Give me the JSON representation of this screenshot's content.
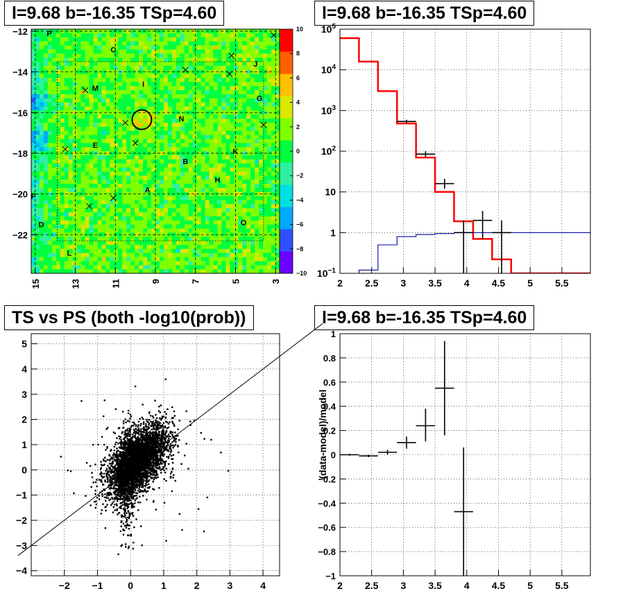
{
  "panels": {
    "skymap": {
      "title": "l=9.68 b=-16.35 TSp=4.60",
      "chart_data": {
        "type": "heatmap",
        "xlim": [
          15.2,
          2.8
        ],
        "ylim": [
          -23.9,
          -11.9
        ],
        "x_ticks": [
          15,
          13,
          11,
          9,
          7,
          5,
          3
        ],
        "y_ticks": [
          -12,
          -14,
          -16,
          -18,
          -20,
          -22
        ],
        "color_scale": {
          "min": -10,
          "max": 10,
          "ticks": [
            10,
            8,
            6,
            4,
            2,
            0,
            -2,
            -4,
            -6,
            -8,
            -10
          ]
        },
        "colors": [
          "#6a00ff",
          "#3050ff",
          "#00aaff",
          "#00e0e0",
          "#30f0a0",
          "#00ff40",
          "#80ff00",
          "#d8e800",
          "#ffc000",
          "#ff6000",
          "#ff0000"
        ],
        "labels": [
          {
            "text": "P",
            "x": 14.3,
            "y": -12.1
          },
          {
            "text": "C",
            "x": 11.1,
            "y": -12.9
          },
          {
            "text": "J",
            "x": 4.0,
            "y": -13.6
          },
          {
            "text": "I",
            "x": 9.6,
            "y": -14.6
          },
          {
            "text": "M",
            "x": 12.0,
            "y": -14.8
          },
          {
            "text": "G",
            "x": 3.8,
            "y": -15.3
          },
          {
            "text": "N",
            "x": 7.7,
            "y": -16.3
          },
          {
            "text": "E",
            "x": 12.0,
            "y": -17.6
          },
          {
            "text": "K",
            "x": 5.0,
            "y": -17.9
          },
          {
            "text": "B",
            "x": 7.5,
            "y": -18.4
          },
          {
            "text": "H",
            "x": 5.9,
            "y": -19.3
          },
          {
            "text": "A",
            "x": 9.4,
            "y": -19.8
          },
          {
            "text": "F",
            "x": 15.1,
            "y": -20.1
          },
          {
            "text": "D",
            "x": 14.7,
            "y": -21.5
          },
          {
            "text": "O",
            "x": 4.6,
            "y": -21.4
          },
          {
            "text": "L",
            "x": 13.3,
            "y": -22.9
          }
        ],
        "crosses": [
          {
            "x": 3.1,
            "y": -12.2
          },
          {
            "x": 5.2,
            "y": -13.2
          },
          {
            "x": 7.5,
            "y": -13.9
          },
          {
            "x": 5.3,
            "y": -14.1
          },
          {
            "x": 12.5,
            "y": -14.9
          },
          {
            "x": 10.5,
            "y": -16.5
          },
          {
            "x": 3.6,
            "y": -16.6
          },
          {
            "x": 10.0,
            "y": -17.5
          },
          {
            "x": 13.5,
            "y": -17.8
          },
          {
            "x": 11.1,
            "y": -20.2
          },
          {
            "x": 12.3,
            "y": -20.6
          }
        ],
        "circle": {
          "x": 9.68,
          "y": -16.35
        }
      }
    },
    "spectrum": {
      "title": "l=9.68 b=-16.35 TSp=4.60",
      "chart_data": {
        "type": "line",
        "log_y": true,
        "xlim": [
          2,
          5.95
        ],
        "ylim": [
          0.1,
          100000
        ],
        "x_ticks": [
          2,
          2.5,
          3,
          3.5,
          4,
          4.5,
          5,
          5.5
        ],
        "y_ticks": [
          {
            "value": 0.1,
            "base": "10",
            "exp": "−1"
          },
          {
            "value": 1,
            "label": "1"
          },
          {
            "value": 10,
            "label": "10"
          },
          {
            "value": 100,
            "base": "10",
            "exp": "2"
          },
          {
            "value": 1000,
            "base": "10",
            "exp": "3"
          },
          {
            "value": 10000,
            "base": "10",
            "exp": "4"
          },
          {
            "value": 100000,
            "base": "10",
            "exp": "5"
          }
        ],
        "grid": true,
        "series": [
          {
            "color": "#ff0000",
            "type": "step",
            "edges": [
              2.0,
              2.3,
              2.6,
              2.9,
              3.2,
              3.5,
              3.8,
              4.1,
              4.4,
              4.7,
              5.95
            ],
            "values": [
              60000,
              16000,
              3000,
              480,
              70,
              10,
              1.9,
              0.7,
              0.22,
              0.1
            ]
          },
          {
            "color": "#0000aa",
            "type": "step",
            "edges": [
              2.0,
              2.3,
              2.6,
              2.9,
              3.2,
              3.5,
              3.8,
              4.1,
              4.4,
              5.95
            ],
            "values": [
              0.1,
              0.12,
              0.5,
              0.8,
              0.9,
              0.95,
              1.0,
              1.0,
              1.0
            ]
          },
          {
            "color": "#000000",
            "type": "errorbar",
            "points": [
              {
                "x": 3.05,
                "xerr": 0.15,
                "y": 540,
                "lo": 490,
                "hi": 590
              },
              {
                "x": 3.35,
                "xerr": 0.15,
                "y": 85,
                "lo": 72,
                "hi": 100
              },
              {
                "x": 3.65,
                "xerr": 0.15,
                "y": 16,
                "lo": 12,
                "hi": 21
              },
              {
                "x": 3.95,
                "xerr": 0.15,
                "y": 1,
                "lo": 0.1,
                "hi": 2.0
              },
              {
                "x": 4.25,
                "xerr": 0.15,
                "y": 2,
                "lo": 0.7,
                "hi": 3.4
              },
              {
                "x": 4.55,
                "xerr": 0.15,
                "y": 1,
                "lo": 0.1,
                "hi": 2.0
              }
            ]
          }
        ]
      }
    },
    "scatter": {
      "title": "TS vs PS (both -log10(prob))",
      "chart_data": {
        "type": "scatter",
        "xlim": [
          -3,
          4.5
        ],
        "ylim": [
          -4.2,
          5.4
        ],
        "x_ticks": [
          -2,
          -1,
          0,
          1,
          2,
          3,
          4
        ],
        "y_ticks": [
          -4,
          -3,
          -2,
          -1,
          0,
          1,
          2,
          3,
          4,
          5
        ],
        "grid": true,
        "point_count": 4000,
        "correlation": 0.55,
        "reference_line": {
          "slope": 1,
          "intercept": 0
        }
      }
    },
    "residual": {
      "title": "l=9.68 b=-16.35 TSp=4.60",
      "chart_data": {
        "type": "scatter",
        "ylabel": "(data-model)/model",
        "xlim": [
          2,
          5.95
        ],
        "ylim": [
          -1,
          1
        ],
        "x_ticks": [
          2,
          2.5,
          3,
          3.5,
          4,
          4.5,
          5,
          5.5
        ],
        "y_ticks": [
          1,
          0.8,
          0.6,
          0.4,
          0.2,
          0,
          -0.2,
          -0.4,
          -0.6,
          -0.8,
          -1
        ],
        "grid": true,
        "points": [
          {
            "x": 2.15,
            "xerr": 0.15,
            "y": 0.0,
            "lo": -0.008,
            "hi": 0.008
          },
          {
            "x": 2.45,
            "xerr": 0.15,
            "y": -0.01,
            "lo": -0.02,
            "hi": 0.0
          },
          {
            "x": 2.75,
            "xerr": 0.15,
            "y": 0.02,
            "lo": 0.0,
            "hi": 0.04
          },
          {
            "x": 3.05,
            "xerr": 0.15,
            "y": 0.1,
            "lo": 0.05,
            "hi": 0.15
          },
          {
            "x": 3.35,
            "xerr": 0.15,
            "y": 0.24,
            "lo": 0.11,
            "hi": 0.38
          },
          {
            "x": 3.65,
            "xerr": 0.15,
            "y": 0.55,
            "lo": 0.16,
            "hi": 0.94
          },
          {
            "x": 3.95,
            "xerr": 0.15,
            "y": -0.47,
            "lo": -1.0,
            "hi": 0.06
          }
        ]
      }
    }
  }
}
